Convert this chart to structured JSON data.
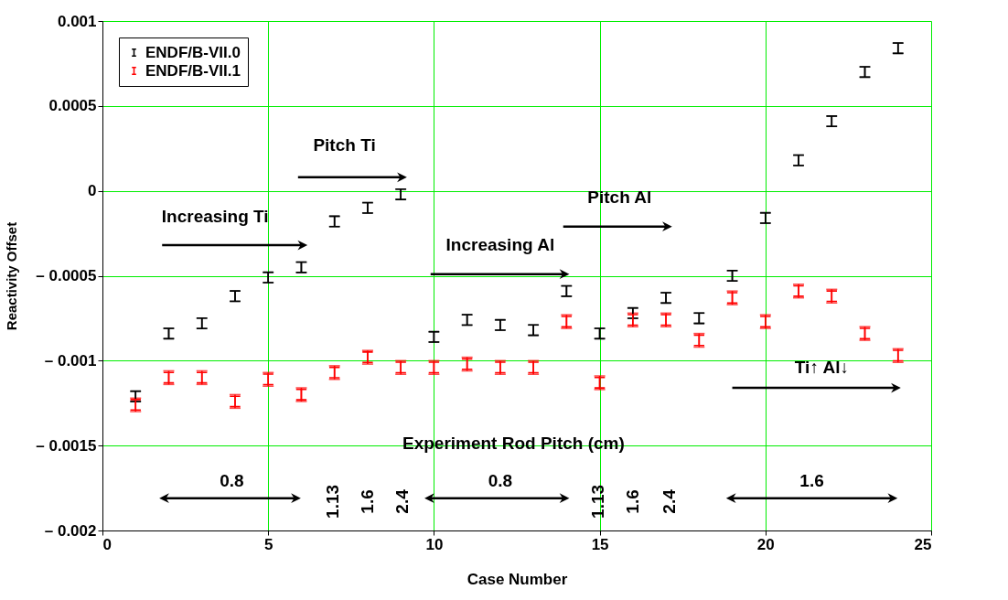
{
  "chart_data": {
    "type": "scatter",
    "xlabel": "Case Number",
    "ylabel": "Reactivity Offset",
    "x": [
      1,
      2,
      3,
      4,
      5,
      6,
      7,
      8,
      9,
      10,
      11,
      12,
      13,
      14,
      15,
      16,
      17,
      18,
      19,
      20,
      21,
      22,
      23,
      24
    ],
    "series": [
      {
        "name": "ENDF/B-VII.0",
        "color": "#000000",
        "values": [
          -0.00121,
          -0.00084,
          -0.00078,
          -0.00062,
          -0.00051,
          -0.00045,
          -0.00018,
          -0.0001,
          -2e-05,
          -0.00086,
          -0.00076,
          -0.00079,
          -0.00082,
          -0.00059,
          -0.00084,
          -0.00072,
          -0.00063,
          -0.00075,
          -0.0005,
          -0.00016,
          0.00018,
          0.00041,
          0.0007,
          0.00084
        ],
        "errors": [
          3e-05,
          3e-05,
          3e-05,
          3e-05,
          3e-05,
          3e-05,
          3e-05,
          3e-05,
          3e-05,
          3e-05,
          3e-05,
          3e-05,
          3e-05,
          3e-05,
          3e-05,
          3e-05,
          3e-05,
          3e-05,
          3e-05,
          3e-05,
          3e-05,
          3e-05,
          3e-05,
          3e-05
        ]
      },
      {
        "name": "ENDF/B-VII.1",
        "color": "#ff0000",
        "values": [
          -0.00126,
          -0.0011,
          -0.0011,
          -0.00124,
          -0.00111,
          -0.0012,
          -0.00107,
          -0.00098,
          -0.00104,
          -0.00104,
          -0.00102,
          -0.00104,
          -0.00104,
          -0.00077,
          -0.00113,
          -0.00076,
          -0.00076,
          -0.00088,
          -0.00063,
          -0.00077,
          -0.00059,
          -0.00062,
          -0.00084,
          -0.00097
        ],
        "errors": [
          4e-05,
          4e-05,
          4e-05,
          4e-05,
          4e-05,
          4e-05,
          4e-05,
          4e-05,
          4e-05,
          4e-05,
          4e-05,
          4e-05,
          4e-05,
          4e-05,
          4e-05,
          4e-05,
          4e-05,
          4e-05,
          4e-05,
          4e-05,
          4e-05,
          4e-05,
          4e-05,
          4e-05
        ]
      }
    ],
    "xlim": [
      0,
      25
    ],
    "xticks": [
      0,
      5,
      10,
      15,
      20,
      25
    ],
    "ylim": [
      -0.002,
      0.001
    ],
    "yticks": [
      {
        "value": -0.002,
        "label": "– 0.002"
      },
      {
        "value": -0.0015,
        "label": "– 0.0015"
      },
      {
        "value": -0.001,
        "label": "– 0.001"
      },
      {
        "value": -0.0005,
        "label": "– 0.0005"
      },
      {
        "value": 0,
        "label": "0"
      },
      {
        "value": 0.0005,
        "label": "0.0005"
      },
      {
        "value": 0.001,
        "label": "0.001"
      }
    ],
    "grid": true,
    "legend": "top left",
    "annotations": [
      "Increasing Ti",
      "Pitch Ti",
      "Increasing Al",
      "Pitch Al",
      "Ti↑  Al↓",
      "Experiment Rod Pitch (cm)",
      "0.8",
      "1.13",
      "1.6",
      "2.4",
      "0.8",
      "1.13",
      "1.6",
      "2.4",
      "1.6"
    ]
  }
}
